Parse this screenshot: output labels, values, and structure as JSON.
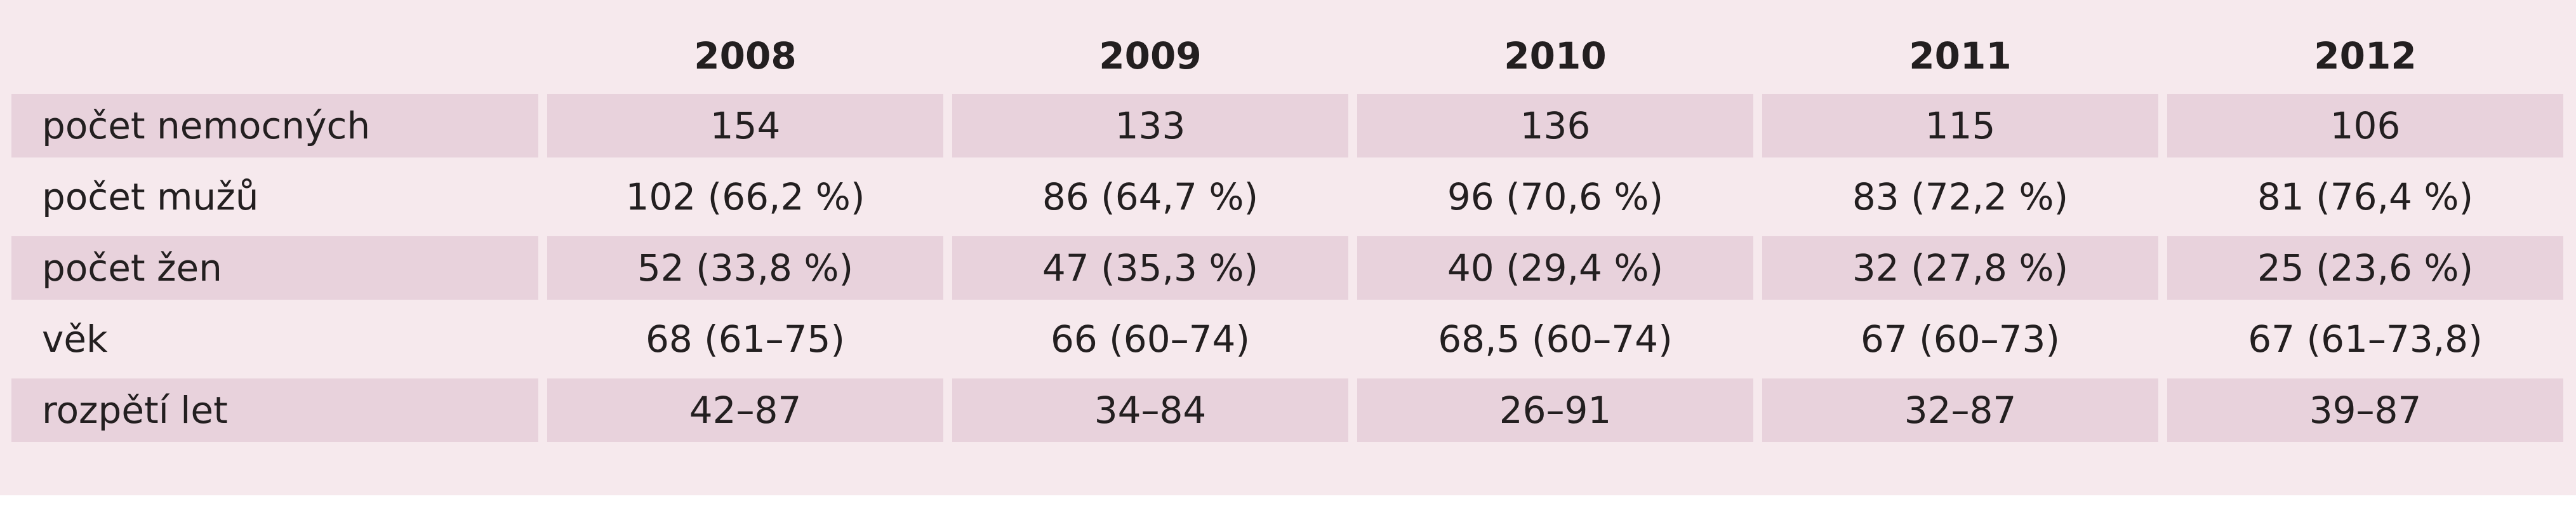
{
  "table": {
    "columns": [
      "",
      "2008",
      "2009",
      "2010",
      "2011",
      "2012"
    ],
    "rows": [
      {
        "label": "počet nemocných",
        "values": [
          "154",
          "133",
          "136",
          "115",
          "106"
        ]
      },
      {
        "label": "počet mužů",
        "values": [
          "102 (66,2 %)",
          "86 (64,7 %)",
          "96 (70,6 %)",
          "83 (72,2 %)",
          "81 (76,4 %)"
        ]
      },
      {
        "label": "počet žen",
        "values": [
          "52 (33,8 %)",
          "47 (35,3 %)",
          "40 (29,4 %)",
          "32 (27,8 %)",
          "25 (23,6 %)"
        ]
      },
      {
        "label": "věk",
        "values": [
          "68 (61–75)",
          "66 (60–74)",
          "68,5 (60–74)",
          "67 (60–73)",
          "67 (61–73,8)"
        ]
      },
      {
        "label": "rozpětí let",
        "values": [
          "42–87",
          "34–84",
          "26–91",
          "32–87",
          "39–87"
        ]
      }
    ],
    "colors": {
      "background": "#f6e9ed",
      "shaded_row": "#e8d2dc",
      "text": "#231f20"
    }
  }
}
